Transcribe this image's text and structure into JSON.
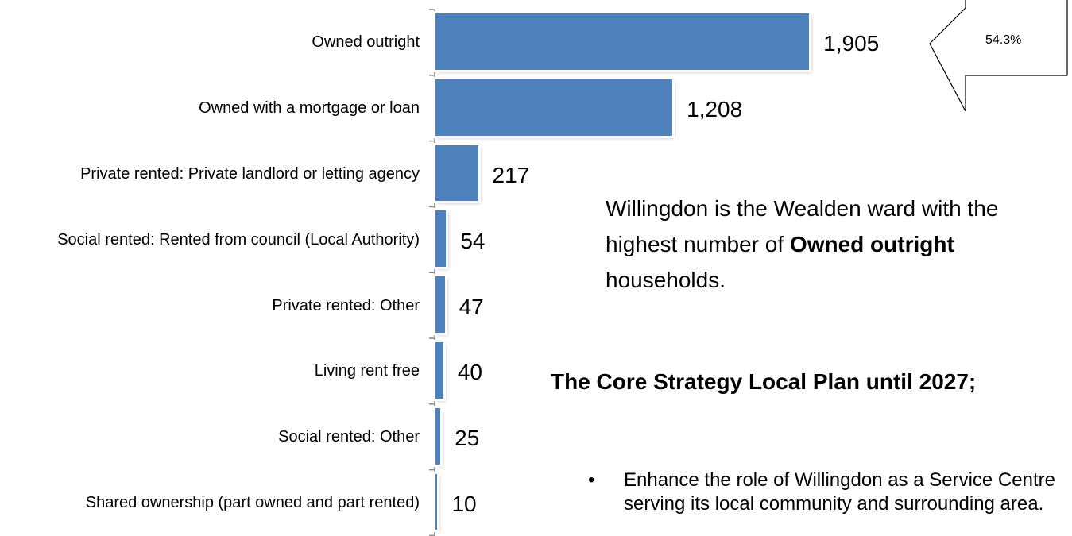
{
  "chart_data": {
    "type": "bar",
    "orientation": "horizontal",
    "categories": [
      "Owned outright",
      "Owned with a mortgage or loan",
      "Private rented: Private landlord or letting agency",
      "Social rented: Rented from council (Local Authority)",
      "Private rented: Other",
      "Living rent free",
      "Social rented: Other",
      "Shared ownership (part owned and part rented)"
    ],
    "values": [
      1905,
      1208,
      217,
      54,
      47,
      40,
      25,
      10
    ],
    "value_labels": [
      "1,905",
      "1,208",
      "217",
      "54",
      "47",
      "40",
      "25",
      "10"
    ],
    "color": "#4f81bd",
    "xlim": [
      0,
      2500
    ],
    "annotation": "54.3%",
    "note": [
      "Willingdon is the Wealden ward with the highest number of ",
      "Owned outright",
      " households."
    ],
    "heading": "The Core Strategy Local Plan until 2027;",
    "bullets": [
      "Enhance the role of Willingdon as a Service Centre serving its local community and surrounding area."
    ]
  }
}
